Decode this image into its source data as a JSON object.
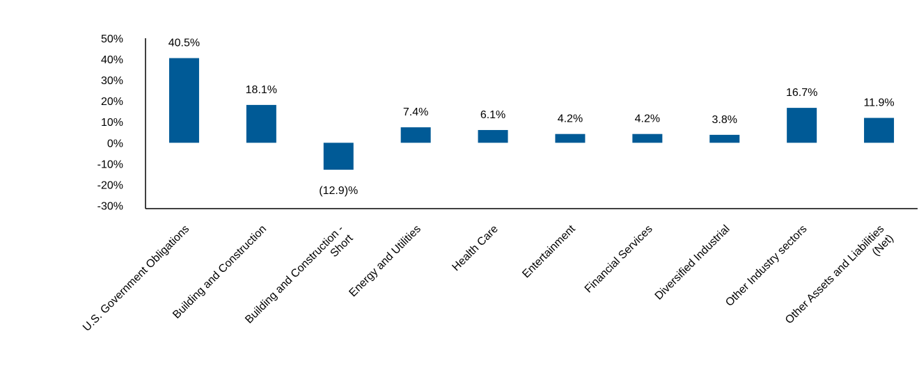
{
  "chart_data": {
    "type": "bar",
    "categories": [
      "U.S. Government Obligations",
      "Building and Construction",
      [
        "Building and Construction -",
        "Short"
      ],
      "Energy and Utilities",
      "Health Care",
      "Entertainment",
      "Financial Services",
      "Diversified Industrial",
      "Other Industry sectors",
      [
        "Other Assets and Liabilities",
        "(Net)"
      ]
    ],
    "values": [
      40.5,
      18.1,
      -12.9,
      7.4,
      6.1,
      4.2,
      4.2,
      3.8,
      16.7,
      11.9
    ],
    "data_labels": [
      "40.5%",
      "18.1%",
      "(12.9)%",
      "7.4%",
      "6.1%",
      "4.2%",
      "4.2%",
      "3.8%",
      "16.7%",
      "11.9%"
    ],
    "y_ticks": [
      {
        "value": 50,
        "label": "50%"
      },
      {
        "value": 40,
        "label": "40%"
      },
      {
        "value": 30,
        "label": "30%"
      },
      {
        "value": 20,
        "label": "20%"
      },
      {
        "value": 10,
        "label": "10%"
      },
      {
        "value": 0,
        "label": "0%"
      },
      {
        "value": -10,
        "label": "-10%"
      },
      {
        "value": -20,
        "label": "-20%"
      },
      {
        "value": -30,
        "label": "-30%"
      }
    ],
    "ylim": [
      -31.5,
      50
    ],
    "title": "",
    "xlabel": "",
    "ylabel": "",
    "grid": false,
    "bar_color": "#005a96"
  }
}
